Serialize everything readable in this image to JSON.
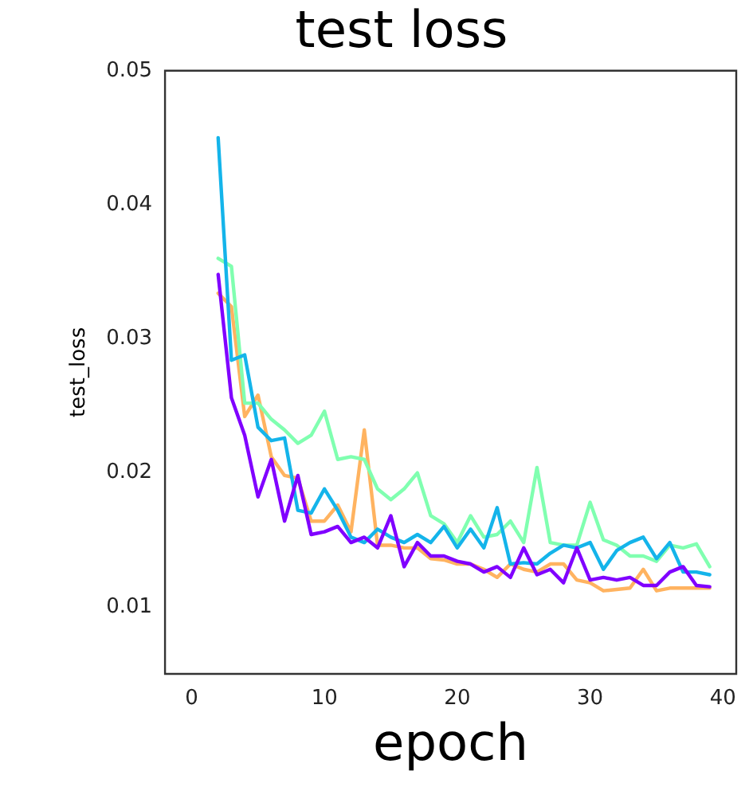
{
  "chart_data": {
    "type": "line",
    "title": "test loss",
    "xlabel": "epoch",
    "ylabel": "test_loss",
    "xlim": [
      -2,
      41
    ],
    "xticks": [
      0,
      10,
      20,
      30,
      40
    ],
    "ylim": [
      0.005,
      0.05
    ],
    "yticks": [
      0.01,
      0.02,
      0.03,
      0.04,
      0.05
    ],
    "grid": false,
    "legend": false,
    "marker": "none",
    "line_style": "solid",
    "x": [
      2,
      3,
      4,
      5,
      6,
      7,
      8,
      9,
      10,
      11,
      12,
      13,
      14,
      15,
      16,
      17,
      18,
      19,
      20,
      21,
      22,
      23,
      24,
      25,
      26,
      27,
      28,
      29,
      30,
      31,
      32,
      33,
      34,
      35,
      36,
      37,
      38,
      39
    ],
    "series": [
      {
        "color": "#8000ff",
        "values": [
          0.0348,
          0.0256,
          0.0228,
          0.0182,
          0.021,
          0.0164,
          0.0198,
          0.0154,
          0.0156,
          0.016,
          0.0148,
          0.0152,
          0.0144,
          0.0168,
          0.013,
          0.0148,
          0.0138,
          0.0138,
          0.0134,
          0.0132,
          0.0126,
          0.013,
          0.0122,
          0.0144,
          0.0124,
          0.0128,
          0.0118,
          0.0144,
          0.012,
          0.0122,
          0.012,
          0.0122,
          0.0116,
          0.0116,
          0.0126,
          0.013,
          0.0116,
          0.0115
        ]
      },
      {
        "color": "#14b4ea",
        "values": [
          0.045,
          0.0284,
          0.0288,
          0.0234,
          0.0224,
          0.0226,
          0.0172,
          0.017,
          0.0188,
          0.0172,
          0.0152,
          0.0148,
          0.0158,
          0.0152,
          0.0148,
          0.0154,
          0.0148,
          0.016,
          0.0144,
          0.0158,
          0.0144,
          0.0174,
          0.0132,
          0.0133,
          0.0132,
          0.014,
          0.0146,
          0.0144,
          0.0148,
          0.0128,
          0.0142,
          0.0148,
          0.0152,
          0.0136,
          0.0148,
          0.0126,
          0.0126,
          0.0124
        ]
      },
      {
        "color": "#80ffb0",
        "values": [
          0.036,
          0.0354,
          0.0252,
          0.0252,
          0.024,
          0.0232,
          0.0222,
          0.0228,
          0.0246,
          0.021,
          0.0212,
          0.021,
          0.0188,
          0.018,
          0.0188,
          0.02,
          0.0168,
          0.0162,
          0.0148,
          0.0168,
          0.0152,
          0.0154,
          0.0164,
          0.0148,
          0.0204,
          0.0148,
          0.0146,
          0.0146,
          0.0178,
          0.015,
          0.0146,
          0.0138,
          0.0138,
          0.0134,
          0.0146,
          0.0144,
          0.0147,
          0.013
        ]
      },
      {
        "color": "#ffb360",
        "values": [
          0.0334,
          0.0324,
          0.0242,
          0.0258,
          0.0212,
          0.0198,
          0.0196,
          0.0164,
          0.0164,
          0.0176,
          0.0156,
          0.0232,
          0.0146,
          0.0146,
          0.0144,
          0.0144,
          0.0136,
          0.0135,
          0.0132,
          0.0132,
          0.0128,
          0.0122,
          0.0132,
          0.0128,
          0.0126,
          0.0132,
          0.0132,
          0.012,
          0.0118,
          0.0112,
          0.0113,
          0.0114,
          0.0128,
          0.0112,
          0.0114,
          0.0114,
          0.0114,
          0.0114
        ]
      }
    ]
  }
}
